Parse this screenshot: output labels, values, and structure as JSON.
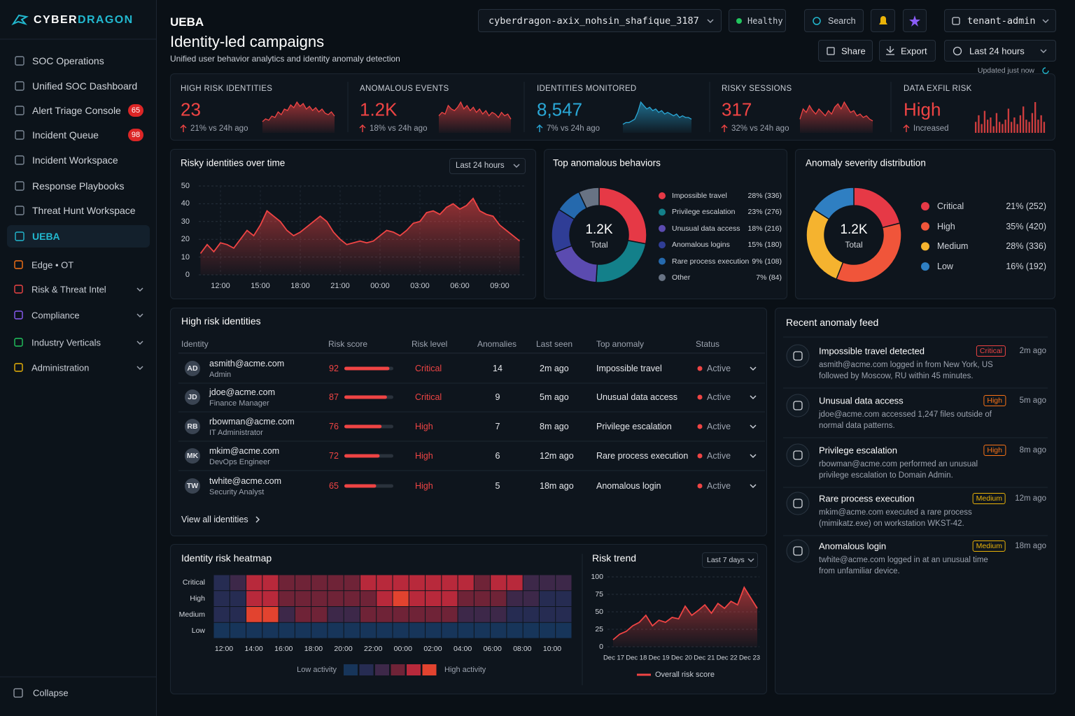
{
  "sidebar": {
    "brand_a": "CYBER",
    "brand_b": "DRAGON",
    "nav": [
      {
        "label": "SOC Operations"
      },
      {
        "label": "Unified SOC Dashboard"
      },
      {
        "label": "Alert Triage Console",
        "badge": 65
      },
      {
        "label": "Incident Queue",
        "badge": 98
      },
      {
        "label": "Incident Workspace"
      },
      {
        "label": "Response Playbooks"
      },
      {
        "label": "Threat Hunt Workspace"
      },
      {
        "label": "UEBA",
        "active": true
      }
    ],
    "groups": [
      {
        "label": "Edge • OT"
      },
      {
        "label": "Risk & Threat Intel",
        "expandable": true
      },
      {
        "label": "Compliance",
        "expandable": true
      },
      {
        "label": "Industry Verticals",
        "expandable": true
      },
      {
        "label": "Administration",
        "expandable": true
      }
    ],
    "collapse": "Collapse"
  },
  "header": {
    "section": "UEBA",
    "title": "Identity-led campaigns",
    "subtitle": "Unified user behavior analytics and identity anomaly detection",
    "tenant": "cyberdragon-axix_nohsin_shafique_3187",
    "status": "Healthy",
    "search": "Search",
    "user": "tenant-admin",
    "share": "Share",
    "export": "Export",
    "range": "Last 24 hours",
    "updated": "Updated just now"
  },
  "kpis": [
    {
      "label": "HIGH RISK IDENTITIES",
      "value": "23",
      "delta": "21% vs 24h ago",
      "color": "#ef4444",
      "spark_type": "area",
      "spark": [
        8,
        10,
        9,
        12,
        11,
        15,
        13,
        17,
        16,
        20,
        18,
        22,
        19,
        21,
        17,
        19,
        16,
        18,
        15,
        17,
        14,
        13,
        15,
        12
      ]
    },
    {
      "label": "ANOMALOUS EVENTS",
      "value": "1.2K",
      "delta": "18% vs 24h ago",
      "color": "#ef4444",
      "spark_type": "area",
      "spark": [
        10,
        12,
        11,
        16,
        14,
        13,
        15,
        18,
        14,
        16,
        13,
        15,
        12,
        14,
        11,
        13,
        10,
        12,
        11,
        9,
        12,
        10,
        11,
        8
      ]
    },
    {
      "label": "IDENTITIES MONITORED",
      "value": "8,547",
      "delta": "7% vs 24h ago",
      "color": "#2aa7d6",
      "spark_type": "area",
      "spark": [
        5,
        6,
        6,
        7,
        8,
        12,
        18,
        16,
        14,
        15,
        13,
        14,
        12,
        13,
        11,
        12,
        11,
        10,
        11,
        9,
        10,
        9,
        9,
        8
      ]
    },
    {
      "label": "RISKY SESSIONS",
      "value": "317",
      "delta": "32% vs 24h ago",
      "color": "#ef4444",
      "spark_type": "area",
      "spark": [
        8,
        14,
        12,
        16,
        13,
        11,
        14,
        12,
        10,
        13,
        11,
        15,
        17,
        14,
        18,
        15,
        12,
        13,
        10,
        11,
        9,
        10,
        8,
        7
      ]
    },
    {
      "label": "DATA EXFIL RISK",
      "value": "High",
      "delta": "Increased",
      "color": "#ef4444",
      "spark_type": "bar",
      "spark": [
        5,
        8,
        4,
        10,
        6,
        7,
        3,
        9,
        5,
        4,
        6,
        11,
        5,
        7,
        4,
        8,
        12,
        6,
        5,
        9,
        14,
        6,
        8,
        5
      ]
    }
  ],
  "risky_over_time": {
    "type": "area",
    "title": "Risky identities over time",
    "range": "Last 24 hours",
    "categories": [
      null,
      null,
      null,
      "12:00",
      null,
      null,
      null,
      null,
      null,
      "15:00",
      null,
      null,
      null,
      null,
      null,
      "18:00",
      null,
      null,
      null,
      null,
      null,
      "21:00",
      null,
      null,
      null,
      null,
      null,
      "00:00",
      null,
      null,
      null,
      null,
      null,
      "03:00",
      null,
      null,
      null,
      null,
      null,
      "06:00",
      null,
      null,
      null,
      null,
      null,
      "09:00",
      null,
      null,
      null
    ],
    "values": [
      12,
      17,
      13,
      18,
      17,
      15,
      20,
      25,
      22,
      28,
      36,
      33,
      30,
      25,
      22,
      24,
      27,
      30,
      33,
      30,
      24,
      20,
      17,
      18,
      19,
      18,
      19,
      22,
      25,
      24,
      22,
      25,
      29,
      30,
      35,
      36,
      34,
      38,
      40,
      37,
      39,
      43,
      36,
      34,
      33,
      28,
      25,
      22,
      19
    ],
    "ylim": [
      0,
      50
    ],
    "yticks": [
      0,
      10,
      20,
      30,
      40,
      50
    ],
    "color": "#ef4444",
    "grid": true
  },
  "top_behaviors": {
    "type": "donut",
    "title": "Top anomalous behaviors",
    "center_value": "1.2K",
    "center_label": "Total",
    "categories": [
      "Impossible travel",
      "Privilege escalation",
      "Unusual data access",
      "Anomalous logins",
      "Rare process execution",
      "Other"
    ],
    "values": [
      28,
      23,
      18,
      15,
      9,
      7
    ],
    "value_labels": [
      "28% (336)",
      "23% (276)",
      "18% (216)",
      "15% (180)",
      "9% (108)",
      "7% (84)"
    ],
    "colors": [
      "#e63946",
      "#13808a",
      "#5b4bb0",
      "#2f3d96",
      "#2569ad",
      "#687384"
    ]
  },
  "severity": {
    "type": "donut",
    "title": "Anomaly severity distribution",
    "center_value": "1.2K",
    "center_label": "Total",
    "categories": [
      "Critical",
      "High",
      "Medium",
      "Low"
    ],
    "values": [
      21,
      35,
      28,
      16
    ],
    "value_labels": [
      "21% (252)",
      "35% (420)",
      "28% (336)",
      "16% (192)"
    ],
    "colors": [
      "#e63946",
      "#f0553a",
      "#f5b32f",
      "#2f7fc2"
    ]
  },
  "identities_table": {
    "title": "High risk identities",
    "columns": [
      "Identity",
      "Risk score",
      "Risk level",
      "Anomalies",
      "Last seen",
      "Top anomaly",
      "Status"
    ],
    "rows": [
      {
        "initials": "AD",
        "email": "asmith@acme.com",
        "role": "Admin",
        "score": 92,
        "level": "Critical",
        "anomalies": 14,
        "last_seen": "2m ago",
        "top_anomaly": "Impossible travel",
        "status": "Active"
      },
      {
        "initials": "JD",
        "email": "jdoe@acme.com",
        "role": "Finance Manager",
        "score": 87,
        "level": "Critical",
        "anomalies": 9,
        "last_seen": "5m ago",
        "top_anomaly": "Unusual data access",
        "status": "Active"
      },
      {
        "initials": "RB",
        "email": "rbowman@acme.com",
        "role": "IT Administrator",
        "score": 76,
        "level": "High",
        "anomalies": 7,
        "last_seen": "8m ago",
        "top_anomaly": "Privilege escalation",
        "status": "Active"
      },
      {
        "initials": "MK",
        "email": "mkim@acme.com",
        "role": "DevOps Engineer",
        "score": 72,
        "level": "High",
        "anomalies": 6,
        "last_seen": "12m ago",
        "top_anomaly": "Rare process execution",
        "status": "Active"
      },
      {
        "initials": "TW",
        "email": "twhite@acme.com",
        "role": "Security Analyst",
        "score": 65,
        "level": "High",
        "anomalies": 5,
        "last_seen": "18m ago",
        "top_anomaly": "Anomalous login",
        "status": "Active"
      }
    ],
    "view_all": "View all identities"
  },
  "heatmap": {
    "type": "heatmap",
    "title": "Identity risk heatmap",
    "rows": [
      "Critical",
      "High",
      "Medium",
      "Low"
    ],
    "x_labels": [
      "12:00",
      "14:00",
      "16:00",
      "18:00",
      "20:00",
      "22:00",
      "00:00",
      "02:00",
      "04:00",
      "06:00",
      "08:00",
      "10:00"
    ],
    "values": [
      [
        1,
        2,
        4,
        4,
        3,
        3,
        3,
        3,
        3,
        4,
        4,
        4,
        4,
        4,
        4,
        4,
        3,
        4,
        4,
        2,
        2,
        2
      ],
      [
        1,
        1,
        4,
        4,
        3,
        3,
        3,
        3,
        3,
        3,
        4,
        5,
        4,
        4,
        4,
        3,
        3,
        3,
        2,
        2,
        1,
        1
      ],
      [
        1,
        1,
        5,
        5,
        2,
        3,
        3,
        2,
        2,
        3,
        3,
        3,
        3,
        3,
        3,
        2,
        2,
        2,
        1,
        1,
        1,
        1
      ],
      [
        0,
        0,
        0,
        0,
        0,
        0,
        0,
        0,
        0,
        0,
        0,
        0,
        0,
        0,
        0,
        0,
        0,
        0,
        0,
        0,
        0,
        0
      ]
    ],
    "colors": [
      "#17355a",
      "#262c52",
      "#3d2849",
      "#6f2337",
      "#b8293b",
      "#e2432f"
    ],
    "legend_low": "Low activity",
    "legend_high": "High activity"
  },
  "risk_trend": {
    "type": "line",
    "title": "Risk trend",
    "range": "Last 7 days",
    "x_labels": [
      "Dec 17",
      "Dec 18",
      "Dec 19",
      "Dec 20",
      "Dec 21",
      "Dec 22",
      "Dec 23"
    ],
    "values": [
      10,
      18,
      22,
      30,
      35,
      45,
      30,
      38,
      35,
      42,
      40,
      58,
      45,
      52,
      60,
      48,
      62,
      55,
      65,
      60,
      85,
      70,
      55
    ],
    "ylim": [
      0,
      100
    ],
    "yticks": [
      0,
      25,
      50,
      75,
      100
    ],
    "series_name": "Overall risk score",
    "color": "#ef4444"
  },
  "feed": {
    "title": "Recent anomaly feed",
    "items": [
      {
        "title": "Impossible travel detected",
        "severity": "Critical",
        "color": "#ef4444",
        "time": "2m ago",
        "description": "asmith@acme.com logged in from New York, US followed by Moscow, RU within 45 minutes."
      },
      {
        "title": "Unusual data access",
        "severity": "High",
        "color": "#f97316",
        "time": "5m ago",
        "description": "jdoe@acme.com accessed 1,247 files outside of normal data patterns."
      },
      {
        "title": "Privilege escalation",
        "severity": "High",
        "color": "#f97316",
        "time": "8m ago",
        "description": "rbowman@acme.com performed an unusual privilege escalation to Domain Admin."
      },
      {
        "title": "Rare process execution",
        "severity": "Medium",
        "color": "#eab308",
        "time": "12m ago",
        "description": "mkim@acme.com executed a rare process (mimikatz.exe) on workstation WKST-42."
      },
      {
        "title": "Anomalous login",
        "severity": "Medium",
        "color": "#eab308",
        "time": "18m ago",
        "description": "twhite@acme.com logged in at an unusual time from unfamiliar device."
      }
    ]
  }
}
